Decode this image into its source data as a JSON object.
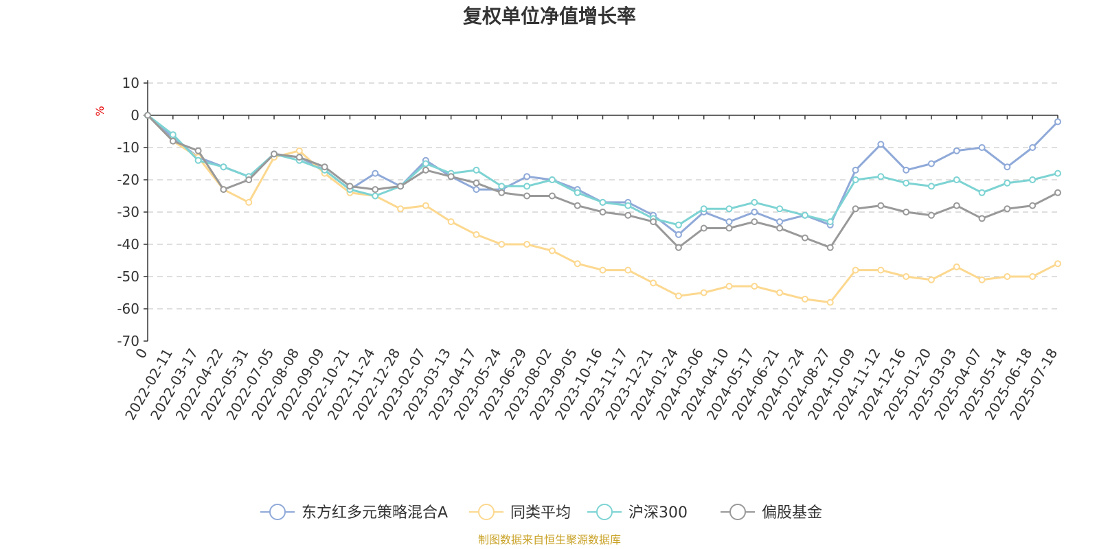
{
  "chart_data": {
    "type": "line",
    "title": "复权单位净值增长率",
    "ylabel": "%",
    "xlabel": "",
    "ylim": [
      -70,
      10
    ],
    "yticks": [
      10,
      0,
      -10,
      -20,
      -30,
      -40,
      -50,
      -60,
      -70
    ],
    "grid": true,
    "legend_position": "bottom",
    "x": [
      "0",
      "2022-02-11",
      "2022-03-17",
      "2022-04-22",
      "2022-05-31",
      "2022-07-05",
      "2022-08-08",
      "2022-09-09",
      "2022-10-21",
      "2022-11-24",
      "2022-12-28",
      "2023-02-07",
      "2023-03-13",
      "2023-04-17",
      "2023-05-24",
      "2023-06-29",
      "2023-08-02",
      "2023-09-05",
      "2023-10-16",
      "2023-11-17",
      "2023-12-21",
      "2024-01-24",
      "2024-03-06",
      "2024-04-10",
      "2024-05-17",
      "2024-06-21",
      "2024-07-24",
      "2024-08-27",
      "2024-10-09",
      "2024-11-12",
      "2024-12-16",
      "2025-01-20",
      "2025-03-03",
      "2025-04-07",
      "2025-05-14",
      "2025-06-18",
      "2025-07-18"
    ],
    "series": [
      {
        "name": "东方红多元策略混合A",
        "color": "#8fa9d8",
        "values": [
          0,
          -7,
          -13,
          -16,
          -19,
          -12,
          -13,
          -17,
          -23,
          -18,
          -22,
          -14,
          -19,
          -23,
          -23,
          -19,
          -20,
          -23,
          -27,
          -27,
          -31,
          -37,
          -30,
          -33,
          -30,
          -33,
          -31,
          -34,
          -17,
          -9,
          -17,
          -15,
          -11,
          -10,
          -16,
          -10,
          -2
        ]
      },
      {
        "name": "同类平均",
        "color": "#fcd88f",
        "values": [
          0,
          -8,
          -13,
          -23,
          -27,
          -13,
          -11,
          -18,
          -24,
          -25,
          -29,
          -28,
          -33,
          -37,
          -40,
          -40,
          -42,
          -46,
          -48,
          -48,
          -52,
          -56,
          -55,
          -53,
          -53,
          -55,
          -57,
          -58,
          -48,
          -48,
          -50,
          -51,
          -47,
          -51,
          -50,
          -50,
          -46
        ]
      },
      {
        "name": "沪深300",
        "color": "#7dd3d3",
        "values": [
          0,
          -6,
          -14,
          -16,
          -19,
          -12,
          -14,
          -17,
          -23,
          -25,
          -22,
          -15,
          -18,
          -17,
          -22,
          -22,
          -20,
          -24,
          -27,
          -28,
          -32,
          -34,
          -29,
          -29,
          -27,
          -29,
          -31,
          -33,
          -20,
          -19,
          -21,
          -22,
          -20,
          -24,
          -21,
          -20,
          -18
        ]
      },
      {
        "name": "偏股基金",
        "color": "#999999",
        "values": [
          0,
          -8,
          -11,
          -23,
          -20,
          -12,
          -13,
          -16,
          -22,
          -23,
          -22,
          -17,
          -19,
          -21,
          -24,
          -25,
          -25,
          -28,
          -30,
          -31,
          -33,
          -41,
          -35,
          -35,
          -33,
          -35,
          -38,
          -41,
          -29,
          -28,
          -30,
          -31,
          -28,
          -32,
          -29,
          -28,
          -24
        ]
      }
    ],
    "source": "制图数据来自恒生聚源数据库"
  }
}
